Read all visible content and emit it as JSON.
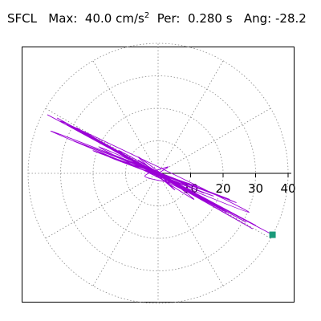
{
  "header": {
    "station": "SFCL",
    "max_label": "Max:",
    "max_value": "40.0",
    "max_unit": "cm/s",
    "max_unit_exp": "2",
    "period_label": "Per:",
    "period_value": "0.280 s",
    "angle_label": "Ang:",
    "angle_value": "-28.2"
  },
  "chart_data": {
    "type": "line",
    "subtype": "polar-particle-motion",
    "title": "",
    "radial_axis": {
      "range": [
        0,
        40
      ],
      "ticks": [
        10,
        20,
        30,
        40
      ],
      "tick_labels": [
        "10",
        "20",
        "30",
        "40"
      ],
      "unit": "cm/s²"
    },
    "angular_gridlines_deg": [
      0,
      30,
      60,
      90,
      120,
      150,
      180,
      210,
      240,
      270,
      300,
      330
    ],
    "grid": true,
    "peak": {
      "amplitude": 40.0,
      "angle_deg": -28.2,
      "x": 35.2,
      "y": -18.9
    },
    "colors": {
      "trace": "#9a00d6",
      "peak_marker": "#1a9a7a",
      "grid": "#888888",
      "frame": "#000000"
    },
    "series": [
      {
        "points": [
          [
            0,
            0
          ],
          [
            3,
            2
          ],
          [
            -4,
            -1
          ],
          [
            8,
            -3
          ],
          [
            -10,
            4
          ],
          [
            14,
            -6
          ],
          [
            -18,
            8
          ],
          [
            20,
            -11
          ],
          [
            -22,
            12
          ],
          [
            26,
            -14
          ],
          [
            -28,
            15
          ],
          [
            30,
            -16
          ],
          [
            -34,
            18
          ],
          [
            35.2,
            -18.9
          ],
          [
            -30,
            16
          ],
          [
            28,
            -12
          ],
          [
            -33,
            13
          ],
          [
            24,
            -9
          ],
          [
            -26,
            10
          ],
          [
            22,
            -8
          ],
          [
            -20,
            7
          ],
          [
            17,
            -7
          ],
          [
            -15,
            5
          ],
          [
            12,
            -4
          ],
          [
            -9,
            3
          ],
          [
            6,
            -2
          ],
          [
            -4,
            1
          ],
          [
            2,
            -1
          ],
          [
            -1,
            0
          ],
          [
            0,
            0
          ],
          [
            5,
            -5
          ],
          [
            -6,
            5
          ],
          [
            11,
            -8
          ],
          [
            -12,
            7
          ],
          [
            18,
            -10
          ],
          [
            -24,
            13
          ],
          [
            27,
            -15
          ],
          [
            -31,
            17
          ],
          [
            29,
            -17
          ],
          [
            -25,
            14
          ],
          [
            21,
            -12
          ],
          [
            -19,
            10
          ],
          [
            15,
            -9
          ],
          [
            -11,
            6
          ],
          [
            8,
            -5
          ],
          [
            -6,
            4
          ],
          [
            3,
            -2
          ],
          [
            -2,
            1
          ],
          [
            0,
            0
          ]
        ]
      }
    ]
  }
}
